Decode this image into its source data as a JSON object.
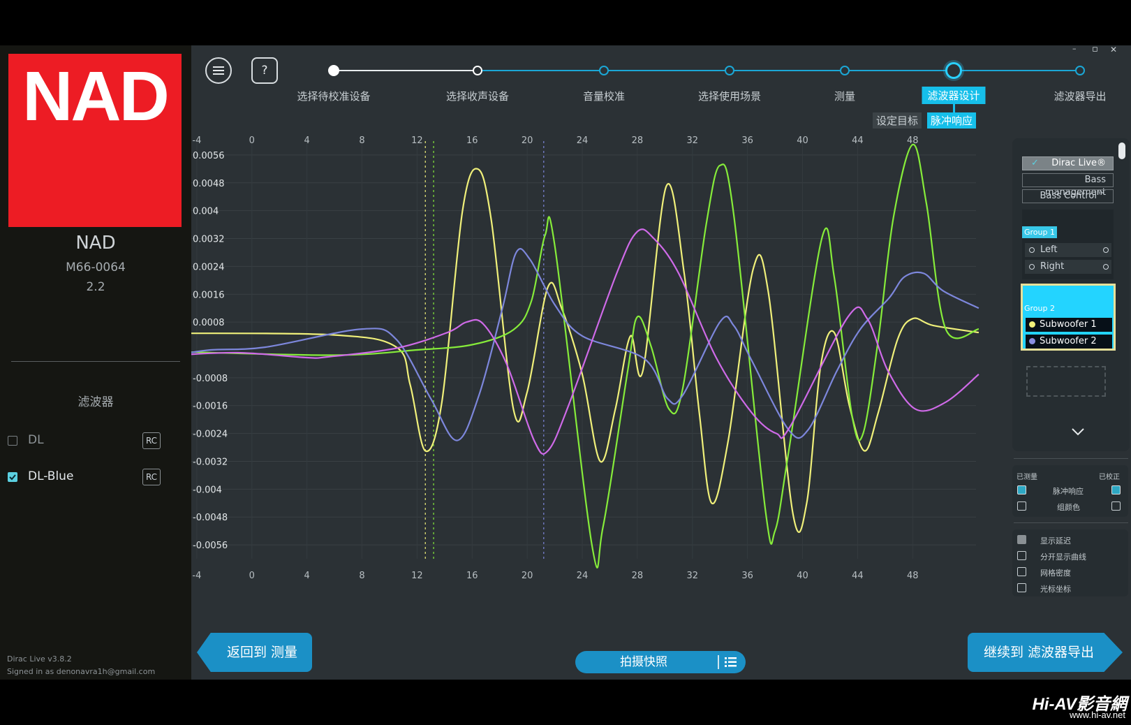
{
  "sidebar": {
    "brand_logo": "NAD",
    "device_name": "NAD",
    "device_model": "M66-0064",
    "device_config": "2.2",
    "section_title": "滤波器",
    "filters": [
      {
        "label": "DL",
        "checked": false,
        "badge": "RC"
      },
      {
        "label": "DL-Blue",
        "checked": true,
        "badge": "RC"
      }
    ],
    "footer_version": "Dirac Live v3.8.2",
    "footer_user": "Signed in as denonavra1h@gmail.com"
  },
  "window_controls": {
    "minimize": "–",
    "restore": "▫",
    "close": "✕"
  },
  "toolbar": {
    "menu_icon": "menu-icon",
    "help_label": "?"
  },
  "steps": [
    {
      "label": "选择待校准设备",
      "state": "done"
    },
    {
      "label": "选择收声设备",
      "state": "done"
    },
    {
      "label": "音量校准",
      "state": "pending"
    },
    {
      "label": "选择使用场景",
      "state": "pending"
    },
    {
      "label": "测量",
      "state": "pending"
    },
    {
      "label": "滤波器设计",
      "state": "active"
    },
    {
      "label": "滤波器导出",
      "state": "pending"
    }
  ],
  "substeps": {
    "target": "设定目标",
    "impulse": "脉冲响应"
  },
  "right_panel": {
    "mode_buttons": [
      "Dirac Live®",
      "Bass management",
      "Bass Control™"
    ],
    "group1": {
      "name": "Group 1",
      "channels": [
        "Left",
        "Right"
      ]
    },
    "group2": {
      "name": "Group 2",
      "channels": [
        "Subwoofer 1",
        "Subwoofer 2"
      ]
    },
    "measured_label": "已测量",
    "corrected_label": "已校正",
    "rows": [
      {
        "label": "脉冲响应",
        "measured": true,
        "corrected": true
      },
      {
        "label": "组颜色",
        "measured": false,
        "corrected": false
      }
    ],
    "options": [
      {
        "label": "显示延迟",
        "checked": true,
        "disabled": true
      },
      {
        "label": "分开显示曲线",
        "checked": false
      },
      {
        "label": "网格密度",
        "checked": false
      },
      {
        "label": "光标坐标",
        "checked": false
      }
    ]
  },
  "bottom": {
    "back_label": "返回到 测量",
    "snapshot_label": "拍摄快照",
    "next_label": "继续到 滤波器导出"
  },
  "watermark": {
    "logo": "Hi-AV影音網",
    "url": "www.hi-av.net"
  },
  "colors": {
    "accent": "#16bfea",
    "brand_red": "#ed1c24",
    "yellow": "#f0f07a",
    "green": "#86ec3a",
    "blue": "#7d87dc",
    "magenta": "#cf6ae8"
  },
  "chart_data": {
    "type": "line",
    "x_ticks": [
      "-4",
      "0",
      "4",
      "8",
      "12",
      "16",
      "20",
      "24",
      "28",
      "32",
      "36",
      "40",
      "44",
      "48"
    ],
    "y_ticks": [
      "0.0056",
      "0.0048",
      "0.004",
      "0.0032",
      "0.0024",
      "0.0016",
      "0.0008",
      "-0.0008",
      "-0.0016",
      "-0.0024",
      "-0.0032",
      "-0.004",
      "-0.0048",
      "-0.0056"
    ],
    "xlim": [
      -4.4,
      52.6
    ],
    "ylim": [
      -0.006,
      0.006
    ],
    "markers": [
      {
        "x": 12.6,
        "color": "#f0f07a"
      },
      {
        "x": 13.2,
        "color": "#86ec3a"
      },
      {
        "x": 21.2,
        "color": "#7d87dc"
      }
    ],
    "series": [
      {
        "color": "#f0f07a",
        "points": [
          [
            -5.5,
            0.00048
          ],
          [
            6,
            0.00043
          ],
          [
            10.5,
            8e-05
          ],
          [
            11.5,
            -0.001
          ],
          [
            12.6,
            -0.0029
          ],
          [
            13.8,
            -0.0015
          ],
          [
            15.3,
            0.004
          ],
          [
            16.4,
            0.0052
          ],
          [
            17.4,
            0.0037
          ],
          [
            19,
            -0.0017
          ],
          [
            20,
            -0.0012
          ],
          [
            21.5,
            0.0018
          ],
          [
            22.5,
            0.0012
          ],
          [
            24,
            -0.0007
          ],
          [
            25.3,
            -0.0032
          ],
          [
            26.4,
            -0.0017
          ],
          [
            27.5,
            0.0004
          ],
          [
            28.4,
            -0.0006
          ],
          [
            30.1,
            0.0047
          ],
          [
            31.4,
            0.0022
          ],
          [
            32.5,
            -0.0018
          ],
          [
            33.4,
            -0.0044
          ],
          [
            34.6,
            -0.0026
          ],
          [
            36.4,
            0.0023
          ],
          [
            37.5,
            0.0017
          ],
          [
            39.3,
            -0.0047
          ],
          [
            40.3,
            -0.0044
          ],
          [
            41.3,
            -0.0005
          ],
          [
            42.3,
            0.0005
          ],
          [
            43.4,
            -0.0016
          ],
          [
            44.5,
            -0.0029
          ],
          [
            45.5,
            -0.0018
          ],
          [
            46.9,
            0.0003
          ],
          [
            48,
            0.0009
          ],
          [
            49.5,
            0.0007
          ],
          [
            52.8,
            0.0005
          ]
        ]
      },
      {
        "color": "#86ec3a",
        "points": [
          [
            -5.5,
            -5e-05
          ],
          [
            6,
            -0.00015
          ],
          [
            12,
            0
          ],
          [
            16,
            0.00015
          ],
          [
            19,
            0.00058
          ],
          [
            20.3,
            0.0014
          ],
          [
            21.3,
            0.0033
          ],
          [
            22,
            0.003
          ],
          [
            24.7,
            -0.0056
          ],
          [
            25.5,
            -0.0051
          ],
          [
            27.3,
            -0.0006
          ],
          [
            28,
            0.00095
          ],
          [
            29,
            0.0001
          ],
          [
            30.3,
            -0.0017
          ],
          [
            31.3,
            -0.0011
          ],
          [
            33,
            0.0036
          ],
          [
            34,
            0.0053
          ],
          [
            35,
            0.0039
          ],
          [
            37.3,
            -0.0046
          ],
          [
            38,
            -0.0052
          ],
          [
            39,
            -0.0029
          ],
          [
            41.4,
            0.0032
          ],
          [
            42.3,
            0.0021
          ],
          [
            43.6,
            -0.0019
          ],
          [
            44.4,
            -0.0024
          ],
          [
            45.5,
            0.0003
          ],
          [
            46.6,
            0.0038
          ],
          [
            48,
            0.0059
          ],
          [
            49,
            0.0042
          ],
          [
            50.4,
            0.0006
          ],
          [
            52.8,
            0.0006
          ]
        ]
      },
      {
        "color": "#7d87dc",
        "points": [
          [
            -5.5,
            -0.00015
          ],
          [
            -3,
            0
          ],
          [
            1,
            8e-05
          ],
          [
            8,
            0.0006
          ],
          [
            10.5,
            0.0003
          ],
          [
            13,
            -0.0014
          ],
          [
            14.9,
            -0.0026
          ],
          [
            16.5,
            -0.0013
          ],
          [
            18.2,
            0.0012
          ],
          [
            19.2,
            0.0028
          ],
          [
            20.2,
            0.0026
          ],
          [
            22,
            0.0013
          ],
          [
            24,
            0.0004
          ],
          [
            28.5,
            -0.00025
          ],
          [
            30.2,
            -0.0014
          ],
          [
            31.3,
            -0.0013
          ],
          [
            34,
            0.0008
          ],
          [
            35,
            0.0007
          ],
          [
            36.3,
            -0.0003
          ],
          [
            39,
            -0.0023
          ],
          [
            40.4,
            -0.0023
          ],
          [
            42.5,
            -0.0006
          ],
          [
            44.2,
            0.0006
          ],
          [
            46.3,
            0.0015
          ],
          [
            47.4,
            0.0021
          ],
          [
            48.8,
            0.0022
          ],
          [
            50.2,
            0.0017
          ],
          [
            52.8,
            0.0012
          ]
        ]
      },
      {
        "color": "#cf6ae8",
        "points": [
          [
            -5.5,
            -0.00015
          ],
          [
            -1,
            -8e-05
          ],
          [
            4,
            -0.00022
          ],
          [
            5.5,
            -0.0002
          ],
          [
            10.5,
            5e-05
          ],
          [
            14.2,
            0.0005
          ],
          [
            15.6,
            0.0008
          ],
          [
            16.8,
            0.00075
          ],
          [
            18.5,
            -0.0004
          ],
          [
            20.5,
            -0.0026
          ],
          [
            21.5,
            -0.0029
          ],
          [
            23,
            -0.0016
          ],
          [
            26.5,
            0.0022
          ],
          [
            28,
            0.0034
          ],
          [
            29.2,
            0.0032
          ],
          [
            31,
            0.0022
          ],
          [
            33.7,
            -0.0002
          ],
          [
            36.3,
            -0.0018
          ],
          [
            38.1,
            -0.0024
          ],
          [
            39.1,
            -0.0022
          ],
          [
            43.3,
            0.00095
          ],
          [
            44.7,
            0.0009
          ],
          [
            46.2,
            -0.0006
          ],
          [
            48.2,
            -0.0017
          ],
          [
            50.4,
            -0.0015
          ],
          [
            52.8,
            -0.0007
          ]
        ]
      }
    ]
  }
}
